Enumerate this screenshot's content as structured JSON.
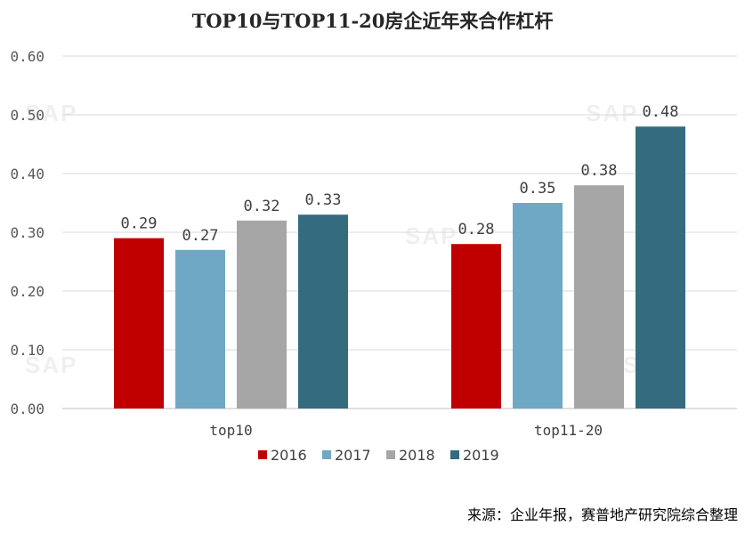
{
  "chart_data": {
    "type": "bar",
    "title": "TOP10与TOP11-20房企近年来合作杠杆",
    "categories": [
      "top10",
      "top11-20"
    ],
    "series": [
      {
        "name": "2016",
        "color": "#C00000",
        "values": [
          0.29,
          0.28
        ]
      },
      {
        "name": "2017",
        "color": "#6FA8C4",
        "values": [
          0.27,
          0.35
        ]
      },
      {
        "name": "2018",
        "color": "#A6A6A6",
        "values": [
          0.32,
          0.38
        ]
      },
      {
        "name": "2019",
        "color": "#346B7E",
        "values": [
          0.33,
          0.48
        ]
      }
    ],
    "ylim": [
      0,
      0.6
    ],
    "yticks": [
      "0.00",
      "0.10",
      "0.20",
      "0.30",
      "0.40",
      "0.50",
      "0.60"
    ],
    "value_labels": [
      [
        "0.29",
        "0.28"
      ],
      [
        "0.27",
        "0.35"
      ],
      [
        "0.32",
        "0.38"
      ],
      [
        "0.33",
        "0.48"
      ]
    ],
    "xlabel": "",
    "ylabel": "",
    "grid": true,
    "legend_position": "bottom"
  },
  "source": "来源：企业年报，赛普地产研究院综合整理",
  "watermark": "SAP"
}
